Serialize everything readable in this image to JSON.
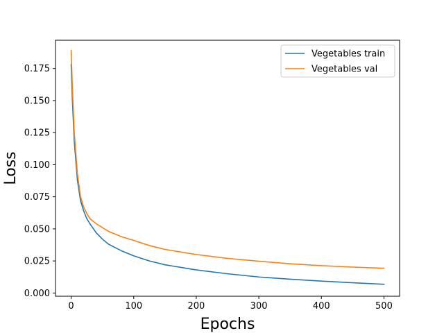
{
  "chart_data": {
    "type": "line",
    "title": "",
    "xlabel": "Epochs",
    "ylabel": "Loss",
    "xlim": [
      -25,
      525
    ],
    "ylim": [
      -0.0025,
      0.197
    ],
    "xticks": [
      0,
      100,
      200,
      300,
      400,
      500
    ],
    "xtick_labels": [
      "0",
      "100",
      "200",
      "300",
      "400",
      "500"
    ],
    "yticks": [
      0.0,
      0.025,
      0.05,
      0.075,
      0.1,
      0.125,
      0.15,
      0.175
    ],
    "ytick_labels": [
      "0.000",
      "0.025",
      "0.050",
      "0.075",
      "0.100",
      "0.125",
      "0.150",
      "0.175"
    ],
    "grid": false,
    "legend": "top-right",
    "x": [
      0,
      2,
      5,
      10,
      15,
      20,
      25,
      30,
      40,
      50,
      60,
      80,
      100,
      125,
      150,
      200,
      250,
      300,
      350,
      400,
      450,
      500
    ],
    "series": [
      {
        "name": "Vegetables train",
        "color": "#1f77b4",
        "values": [
          0.178,
          0.15,
          0.118,
          0.088,
          0.072,
          0.064,
          0.058,
          0.054,
          0.047,
          0.042,
          0.038,
          0.033,
          0.029,
          0.025,
          0.022,
          0.018,
          0.015,
          0.0125,
          0.0108,
          0.0093,
          0.008,
          0.0068
        ]
      },
      {
        "name": "Vegetables val",
        "color": "#ff7f0e",
        "values": [
          0.189,
          0.16,
          0.125,
          0.093,
          0.075,
          0.067,
          0.062,
          0.058,
          0.054,
          0.051,
          0.048,
          0.044,
          0.041,
          0.037,
          0.034,
          0.03,
          0.027,
          0.0248,
          0.0228,
          0.0213,
          0.0202,
          0.0193
        ]
      }
    ]
  }
}
